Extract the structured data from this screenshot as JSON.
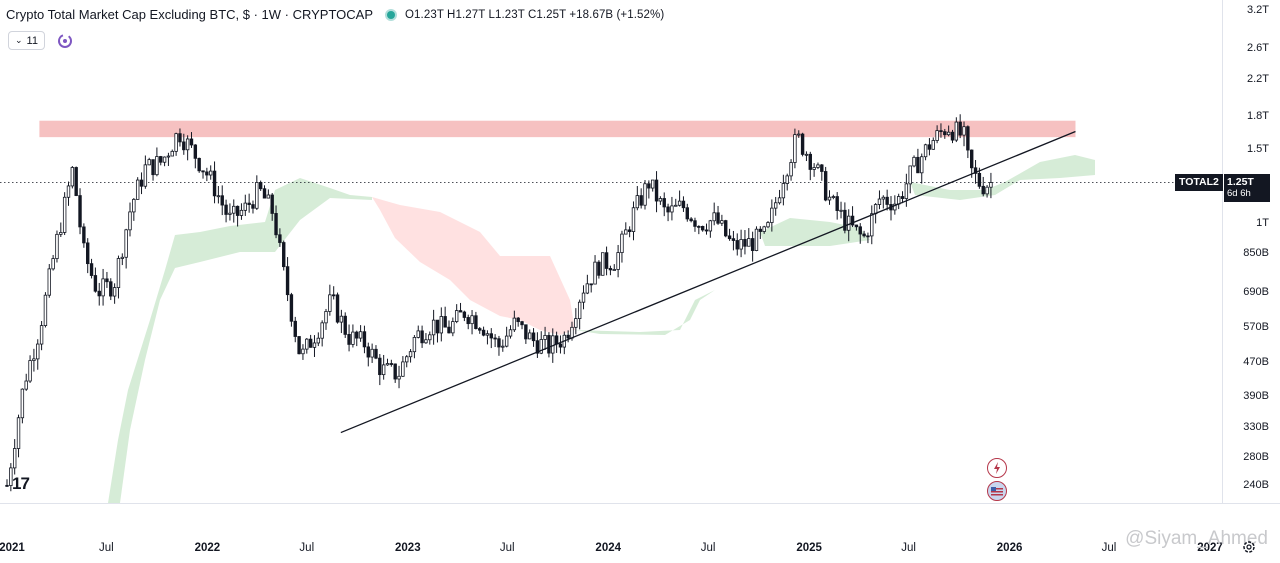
{
  "header": {
    "title": "Crypto Total Market Cap Excluding BTC, $ · 1W · CRYPTOCAP",
    "ohlc": "O1.23T H1.27T L1.23T C1.25T +18.67B (+1.52%)",
    "collapse_label": "11"
  },
  "price_tag": {
    "symbol": "TOTAL2",
    "price": "1.25T",
    "countdown": "6d 6h"
  },
  "logo_text": "17",
  "watermark": "@Siyam_Ahmed",
  "colors": {
    "up": "#131722",
    "down": "#131722",
    "resistance_zone": "#f4b6b6",
    "cloud_bull": "#c8e6c9",
    "cloud_bear": "#ffd7d7",
    "trendline": "#131722"
  },
  "chart_data": {
    "type": "candlestick",
    "title": "Crypto Total Market Cap Excluding BTC, $ · 1W · CRYPTOCAP",
    "scale": "log",
    "y_ticks": [
      "3.2T",
      "2.6T",
      "2.2T",
      "1.8T",
      "1.5T",
      "1T",
      "850B",
      "690B",
      "570B",
      "470B",
      "390B",
      "330B",
      "280B",
      "240B"
    ],
    "y_tick_values": [
      3200,
      2600,
      2200,
      1800,
      1500,
      1000,
      850,
      690,
      570,
      470,
      390,
      330,
      280,
      240
    ],
    "x_ticks": [
      {
        "label": "2021",
        "date": "2021-01-01",
        "year": true
      },
      {
        "label": "Jul",
        "date": "2021-07-01",
        "year": false
      },
      {
        "label": "2022",
        "date": "2022-01-01",
        "year": true
      },
      {
        "label": "Jul",
        "date": "2022-07-01",
        "year": false
      },
      {
        "label": "2023",
        "date": "2023-01-01",
        "year": true
      },
      {
        "label": "Jul",
        "date": "2023-07-01",
        "year": false
      },
      {
        "label": "2024",
        "date": "2024-01-01",
        "year": true
      },
      {
        "label": "Jul",
        "date": "2024-07-01",
        "year": false
      },
      {
        "label": "2025",
        "date": "2025-01-01",
        "year": true
      },
      {
        "label": "Jul",
        "date": "2025-07-01",
        "year": false
      },
      {
        "label": "2026",
        "date": "2026-01-01",
        "year": true
      },
      {
        "label": "Jul",
        "date": "2026-07-01",
        "year": false
      },
      {
        "label": "2027",
        "date": "2027-01-01",
        "year": true
      }
    ],
    "last_close": 1250,
    "resistance_zone": {
      "from": "2021-03-01",
      "to": "2026-05-01",
      "low": 1600,
      "high": 1750
    },
    "trendline": {
      "start": {
        "date": "2022-09-01",
        "value": 320
      },
      "end": {
        "date": "2026-05-01",
        "value": 1650
      }
    },
    "series": [
      {
        "date": "2021-01-01",
        "close": 240
      },
      {
        "date": "2021-02-01",
        "close": 420
      },
      {
        "date": "2021-03-01",
        "close": 560
      },
      {
        "date": "2021-04-01",
        "close": 900
      },
      {
        "date": "2021-05-01",
        "close": 1350
      },
      {
        "date": "2021-05-20",
        "close": 860
      },
      {
        "date": "2021-06-15",
        "close": 690
      },
      {
        "date": "2021-07-15",
        "close": 720
      },
      {
        "date": "2021-08-15",
        "close": 1100
      },
      {
        "date": "2021-09-10",
        "close": 1350
      },
      {
        "date": "2021-10-10",
        "close": 1400
      },
      {
        "date": "2021-11-10",
        "close": 1650
      },
      {
        "date": "2021-12-10",
        "close": 1450
      },
      {
        "date": "2022-01-10",
        "close": 1250
      },
      {
        "date": "2022-02-10",
        "close": 1020
      },
      {
        "date": "2022-03-10",
        "close": 1080
      },
      {
        "date": "2022-04-05",
        "close": 1200
      },
      {
        "date": "2022-05-01",
        "close": 1060
      },
      {
        "date": "2022-05-20",
        "close": 760
      },
      {
        "date": "2022-06-20",
        "close": 480
      },
      {
        "date": "2022-07-20",
        "close": 560
      },
      {
        "date": "2022-08-15",
        "close": 660
      },
      {
        "date": "2022-09-15",
        "close": 540
      },
      {
        "date": "2022-10-15",
        "close": 520
      },
      {
        "date": "2022-11-15",
        "close": 450
      },
      {
        "date": "2022-12-15",
        "close": 440
      },
      {
        "date": "2023-01-15",
        "close": 540
      },
      {
        "date": "2023-02-15",
        "close": 580
      },
      {
        "date": "2023-03-15",
        "close": 560
      },
      {
        "date": "2023-04-15",
        "close": 620
      },
      {
        "date": "2023-05-15",
        "close": 580
      },
      {
        "date": "2023-06-15",
        "close": 510
      },
      {
        "date": "2023-07-15",
        "close": 580
      },
      {
        "date": "2023-08-15",
        "close": 530
      },
      {
        "date": "2023-09-15",
        "close": 510
      },
      {
        "date": "2023-10-15",
        "close": 540
      },
      {
        "date": "2023-11-15",
        "close": 700
      },
      {
        "date": "2023-12-15",
        "close": 800
      },
      {
        "date": "2024-01-15",
        "close": 820
      },
      {
        "date": "2024-02-15",
        "close": 1050
      },
      {
        "date": "2024-03-15",
        "close": 1250
      },
      {
        "date": "2024-04-15",
        "close": 1050
      },
      {
        "date": "2024-05-15",
        "close": 1100
      },
      {
        "date": "2024-06-15",
        "close": 1000
      },
      {
        "date": "2024-07-15",
        "close": 1020
      },
      {
        "date": "2024-08-15",
        "close": 880
      },
      {
        "date": "2024-09-15",
        "close": 900
      },
      {
        "date": "2024-10-15",
        "close": 940
      },
      {
        "date": "2024-11-15",
        "close": 1300
      },
      {
        "date": "2024-12-10",
        "close": 1600
      },
      {
        "date": "2025-01-10",
        "close": 1380
      },
      {
        "date": "2025-02-10",
        "close": 1120
      },
      {
        "date": "2025-03-10",
        "close": 1000
      },
      {
        "date": "2025-04-10",
        "close": 920
      },
      {
        "date": "2025-05-10",
        "close": 1150
      },
      {
        "date": "2025-06-10",
        "close": 1120
      },
      {
        "date": "2025-07-10",
        "close": 1350
      },
      {
        "date": "2025-08-10",
        "close": 1550
      },
      {
        "date": "2025-09-10",
        "close": 1700
      },
      {
        "date": "2025-10-10",
        "close": 1600
      },
      {
        "date": "2025-10-20",
        "close": 1350
      },
      {
        "date": "2025-11-10",
        "close": 1230
      },
      {
        "date": "2025-12-01",
        "close": 1250
      }
    ]
  }
}
